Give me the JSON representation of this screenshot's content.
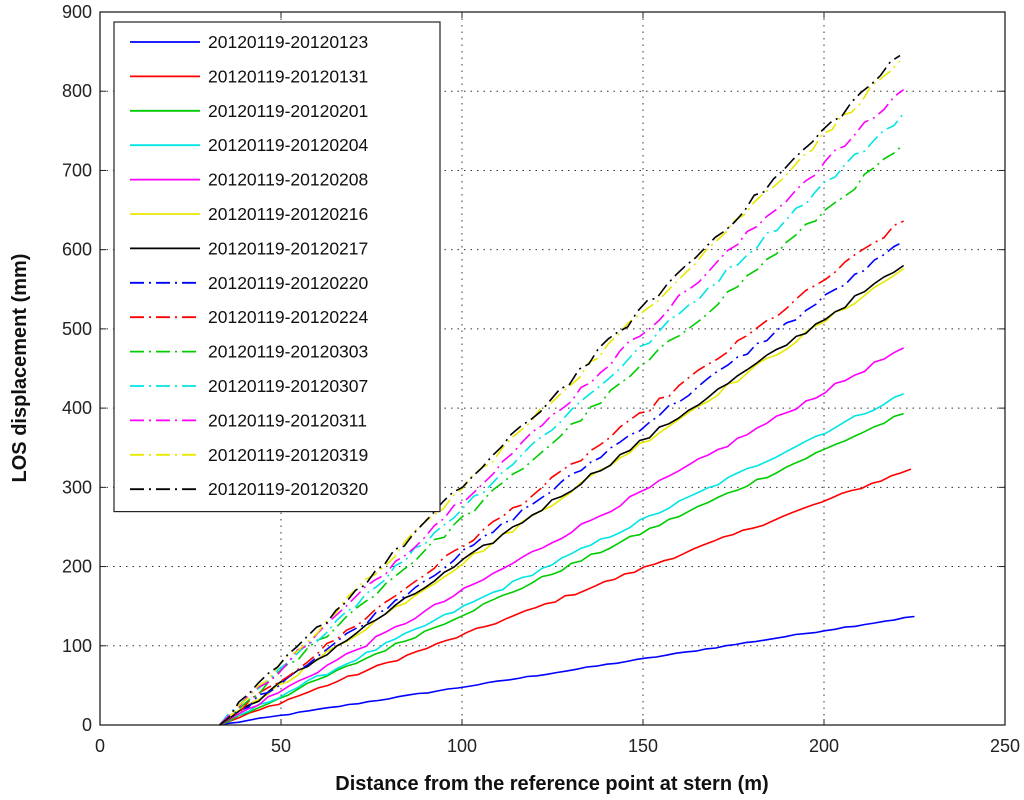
{
  "chart_data": {
    "type": "line",
    "title": "",
    "xlabel": "Distance from the reference point at stern (m)",
    "ylabel": "LOS displacement (mm)",
    "xlim": [
      0,
      250
    ],
    "ylim": [
      0,
      900
    ],
    "xticks": [
      "0",
      "50",
      "100",
      "150",
      "200",
      "250"
    ],
    "yticks": [
      "0",
      "100",
      "200",
      "300",
      "400",
      "500",
      "600",
      "700",
      "800",
      "900"
    ],
    "grid": true,
    "legend_position": "top-left",
    "x_start": 33,
    "series": [
      {
        "name": "20120119-20120123",
        "color": "#0000ff",
        "dash": "solid",
        "x_end": 225,
        "y_end": 137
      },
      {
        "name": "20120119-20120131",
        "color": "#ff0000",
        "dash": "solid",
        "x_end": 224,
        "y_end": 323
      },
      {
        "name": "20120119-20120201",
        "color": "#00cc00",
        "dash": "solid",
        "x_end": 222,
        "y_end": 393
      },
      {
        "name": "20120119-20120204",
        "color": "#00e5e5",
        "dash": "solid",
        "x_end": 222,
        "y_end": 418
      },
      {
        "name": "20120119-20120208",
        "color": "#ff00ff",
        "dash": "solid",
        "x_end": 222,
        "y_end": 476
      },
      {
        "name": "20120119-20120216",
        "color": "#e8e800",
        "dash": "solid",
        "x_end": 222,
        "y_end": 576
      },
      {
        "name": "20120119-20120217",
        "color": "#000000",
        "dash": "solid",
        "x_end": 222,
        "y_end": 580
      },
      {
        "name": "20120119-20120220",
        "color": "#0000ff",
        "dash": "dashdot",
        "x_end": 222,
        "y_end": 610
      },
      {
        "name": "20120119-20120224",
        "color": "#ff0000",
        "dash": "dashdot",
        "x_end": 222,
        "y_end": 636
      },
      {
        "name": "20120119-20120303",
        "color": "#00cc00",
        "dash": "dashdot",
        "x_end": 222,
        "y_end": 733
      },
      {
        "name": "20120119-20120307",
        "color": "#00e5e5",
        "dash": "dashdot",
        "x_end": 222,
        "y_end": 772
      },
      {
        "name": "20120119-20120311",
        "color": "#ff00ff",
        "dash": "dashdot",
        "x_end": 222,
        "y_end": 802
      },
      {
        "name": "20120119-20120319",
        "color": "#e8e800",
        "dash": "dashdot",
        "x_end": 221,
        "y_end": 838
      },
      {
        "name": "20120119-20120320",
        "color": "#000000",
        "dash": "dashdot",
        "x_end": 221,
        "y_end": 845
      }
    ]
  }
}
